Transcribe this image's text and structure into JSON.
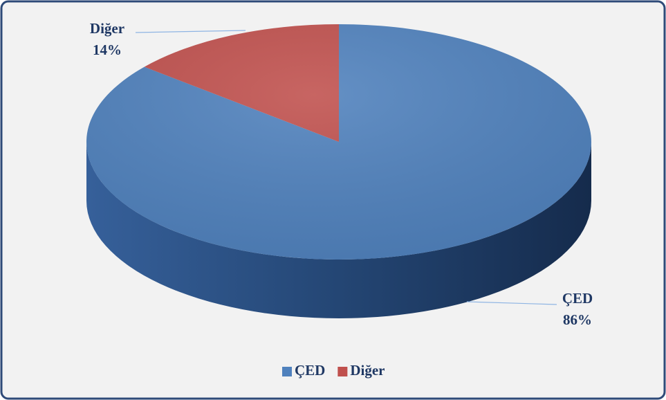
{
  "chart_data": {
    "type": "pie",
    "categories": [
      "ÇED",
      "Diğer"
    ],
    "values": [
      86,
      14
    ],
    "value_labels": [
      "86%",
      "14%"
    ],
    "colors": [
      "#4f81bd",
      "#c0504d"
    ],
    "legend": "bottom"
  }
}
